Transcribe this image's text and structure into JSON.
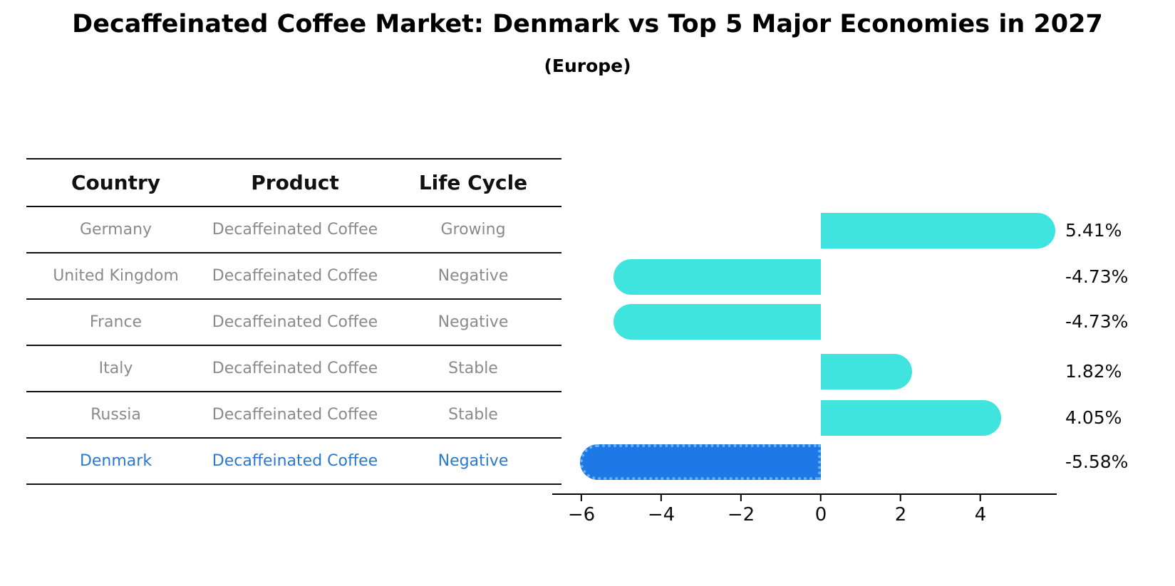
{
  "title": "Decaffeinated Coffee Market: Denmark vs Top 5 Major Economies in 2027",
  "subtitle": "(Europe)",
  "colors": {
    "bar_default": "#3fe4df",
    "bar_highlight": "#1e78e6",
    "highlight_text": "#2b79cc",
    "table_text": "#8a8a8a",
    "header_text": "#111111",
    "axis": "#000000"
  },
  "table": {
    "headers": [
      "Country",
      "Product",
      "Life Cycle"
    ],
    "rows": [
      {
        "country": "Germany",
        "product": "Decaffeinated Coffee",
        "life_cycle": "Growing",
        "highlighted": false
      },
      {
        "country": "United Kingdom",
        "product": "Decaffeinated Coffee",
        "life_cycle": "Negative",
        "highlighted": false
      },
      {
        "country": "France",
        "product": "Decaffeinated Coffee",
        "life_cycle": "Negative",
        "highlighted": false
      },
      {
        "country": "Italy",
        "product": "Decaffeinated Coffee",
        "life_cycle": "Stable",
        "highlighted": false
      },
      {
        "country": "Russia",
        "product": "Decaffeinated Coffee",
        "life_cycle": "Stable",
        "highlighted": false
      },
      {
        "country": "Denmark",
        "product": "Decaffeinated Coffee",
        "life_cycle": "Negative",
        "highlighted": true
      }
    ]
  },
  "chart_data": {
    "type": "bar",
    "orientation": "horizontal",
    "title": "Decaffeinated Coffee Market: Denmark vs Top 5 Major Economies in 2027 (Europe)",
    "categories": [
      "Germany",
      "United Kingdom",
      "France",
      "Italy",
      "Russia",
      "Denmark"
    ],
    "values": [
      5.41,
      -4.73,
      -4.73,
      1.82,
      4.05,
      -5.58
    ],
    "display_values": [
      "5.41%",
      "-4.73%",
      "-4.73%",
      "1.82%",
      "4.05%",
      "-5.58%"
    ],
    "unit": "%",
    "highlight_index": 5,
    "x_tick_values": [
      -6,
      -4,
      -2,
      0,
      2,
      4
    ],
    "x_tick_labels": [
      "−6",
      "−4",
      "−2",
      "0",
      "2",
      "4"
    ],
    "xlim": [
      -6.4,
      5.9
    ],
    "grid": false,
    "legend": "none"
  }
}
